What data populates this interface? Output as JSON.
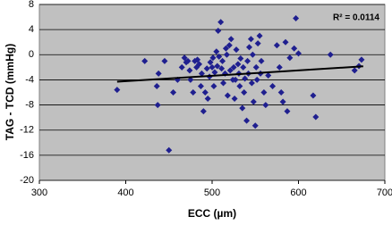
{
  "chart_data": {
    "type": "scatter",
    "x_label": "ECC (µm)",
    "y_label": "TAG - TCD (mmHg)",
    "annotation": "R² = 0.0114",
    "xlim": [
      300,
      700
    ],
    "xticks": [
      300,
      400,
      500,
      600,
      700
    ],
    "ylim": [
      -20,
      8
    ],
    "yticks": [
      -20,
      -16,
      -12,
      -8,
      -4,
      0,
      4,
      8
    ],
    "grid": true,
    "color": "#1f1f8f",
    "line_color": "#000000",
    "background": "#c0c0c0",
    "points": {
      "x": [
        390,
        422,
        437,
        436,
        438,
        445,
        450,
        455,
        460,
        465,
        468,
        470,
        472,
        474,
        475,
        478,
        480,
        482,
        483,
        485,
        487,
        488,
        490,
        492,
        494,
        495,
        497,
        498,
        500,
        501,
        502,
        503,
        505,
        506,
        507,
        508,
        510,
        511,
        512,
        513,
        515,
        516,
        517,
        518,
        520,
        521,
        522,
        524,
        525,
        526,
        527,
        528,
        530,
        531,
        532,
        533,
        535,
        536,
        537,
        538,
        540,
        541,
        542,
        543,
        545,
        546,
        547,
        548,
        550,
        551,
        552,
        553,
        555,
        556,
        557,
        560,
        562,
        565,
        570,
        575,
        578,
        580,
        582,
        585,
        587,
        590,
        595,
        597,
        600,
        617,
        620,
        637,
        665,
        670,
        673
      ],
      "values": [
        -5.6,
        -1,
        -8,
        -5,
        -3,
        -1,
        -15.2,
        -6,
        -4,
        -2,
        -0.5,
        -1.2,
        -1,
        -2.5,
        -4,
        -6,
        -1,
        -2,
        -0.8,
        -1.5,
        -5,
        -3,
        -9,
        -6,
        -2.2,
        -7,
        -3.5,
        -1.2,
        -2,
        -0.5,
        -5,
        -2.8,
        0.5,
        -1.8,
        3.8,
        -0.3,
        5.2,
        -2.2,
        -1,
        -4.5,
        -3,
        1,
        0,
        -6.5,
        1.5,
        -2.5,
        2.5,
        -4,
        -2,
        -7,
        -4,
        0.8,
        -1.5,
        -3,
        -5,
        -0.6,
        -8.5,
        -2,
        -6,
        -3.8,
        -10.5,
        -1,
        -3,
        1.2,
        2.5,
        -4.5,
        0,
        -7.5,
        -11.3,
        -2,
        -4,
        1.8,
        3,
        -3,
        -1,
        -6,
        -8,
        -3.3,
        -5,
        1.5,
        -2,
        -6,
        -7.5,
        2,
        -9,
        -0.5,
        1,
        5.8,
        0.2,
        -6.5,
        -9.9,
        0,
        -2.5,
        -1.8,
        -0.8
      ]
    },
    "trendline": {
      "x": [
        390,
        675
      ],
      "values": [
        -4.3,
        -1.85
      ]
    }
  }
}
